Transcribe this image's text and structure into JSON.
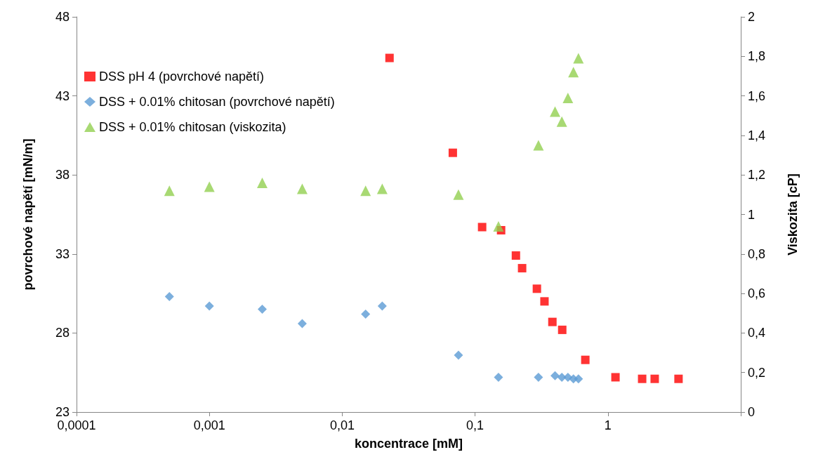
{
  "chart_data": {
    "type": "scatter",
    "xlabel": "koncentrace [mM]",
    "ylabel": "povrchové napětí [mN/m]",
    "y2label": "Viskozita [cP]",
    "log": "x",
    "grid": false,
    "legend": "top left",
    "xlim": [
      0.0001,
      10
    ],
    "xticks": [
      {
        "value": 0.0001,
        "label": "0,0001"
      },
      {
        "value": 0.001,
        "label": "0,001"
      },
      {
        "value": 0.01,
        "label": "0,01"
      },
      {
        "value": 0.1,
        "label": "0,1"
      },
      {
        "value": 1,
        "label": "1"
      },
      {
        "value": 10,
        "label": null
      }
    ],
    "ylim": [
      23,
      48
    ],
    "yticks": [
      23,
      28,
      33,
      38,
      43,
      48
    ],
    "y2lim": [
      0,
      2
    ],
    "y2ticks": [
      0,
      {
        "value": 0.2,
        "label": "0,2"
      },
      {
        "value": 0.4,
        "label": "0,4"
      },
      {
        "value": 0.6,
        "label": "0,6"
      },
      {
        "value": 0.8,
        "label": "0,8"
      },
      1,
      {
        "value": 1.2,
        "label": "1,2"
      },
      {
        "value": 1.4,
        "label": "1,4"
      },
      {
        "value": 1.6,
        "label": "1,6"
      },
      {
        "value": 1.8,
        "label": "1,8"
      },
      2
    ],
    "series": [
      {
        "name": "DSS pH 4 (povrchové napětí)",
        "color": "#ff0000",
        "marker": "square",
        "x": [
          0.0227,
          0.068,
          0.113,
          0.157,
          0.203,
          0.226,
          0.292,
          0.333,
          0.382,
          0.453,
          0.676,
          1.14,
          1.81,
          2.25,
          3.4
        ],
        "values": [
          45.4,
          39.4,
          34.7,
          34.5,
          32.9,
          32.1,
          30.8,
          30.0,
          28.7,
          28.2,
          26.3,
          25.2,
          25.1,
          25.1,
          25.1
        ]
      },
      {
        "name": "DSS + 0.01% chitosan (povrchové napětí)",
        "color": "#5b9bd5",
        "marker": "diamond",
        "x": [
          0.0005,
          0.001,
          0.0025,
          0.005,
          0.015,
          0.02,
          0.075,
          0.15,
          0.3,
          0.4,
          0.45,
          0.5,
          0.55,
          0.6
        ],
        "values": [
          30.3,
          29.7,
          29.5,
          28.6,
          29.2,
          29.7,
          26.6,
          25.2,
          25.2,
          25.3,
          25.2,
          25.2,
          25.1,
          25.1
        ]
      },
      {
        "name": "DSS + 0.01% chitosan (viskozita)",
        "color": "#92d050",
        "marker": "triangle",
        "axis": "y2",
        "x": [
          0.0005,
          0.001,
          0.0025,
          0.005,
          0.015,
          0.02,
          0.075,
          0.15,
          0.3,
          0.4,
          0.45,
          0.5,
          0.55,
          0.6
        ],
        "values": [
          1.12,
          1.14,
          1.16,
          1.13,
          1.12,
          1.13,
          1.1,
          0.94,
          1.35,
          1.52,
          1.47,
          1.59,
          1.72,
          1.79
        ]
      }
    ]
  }
}
